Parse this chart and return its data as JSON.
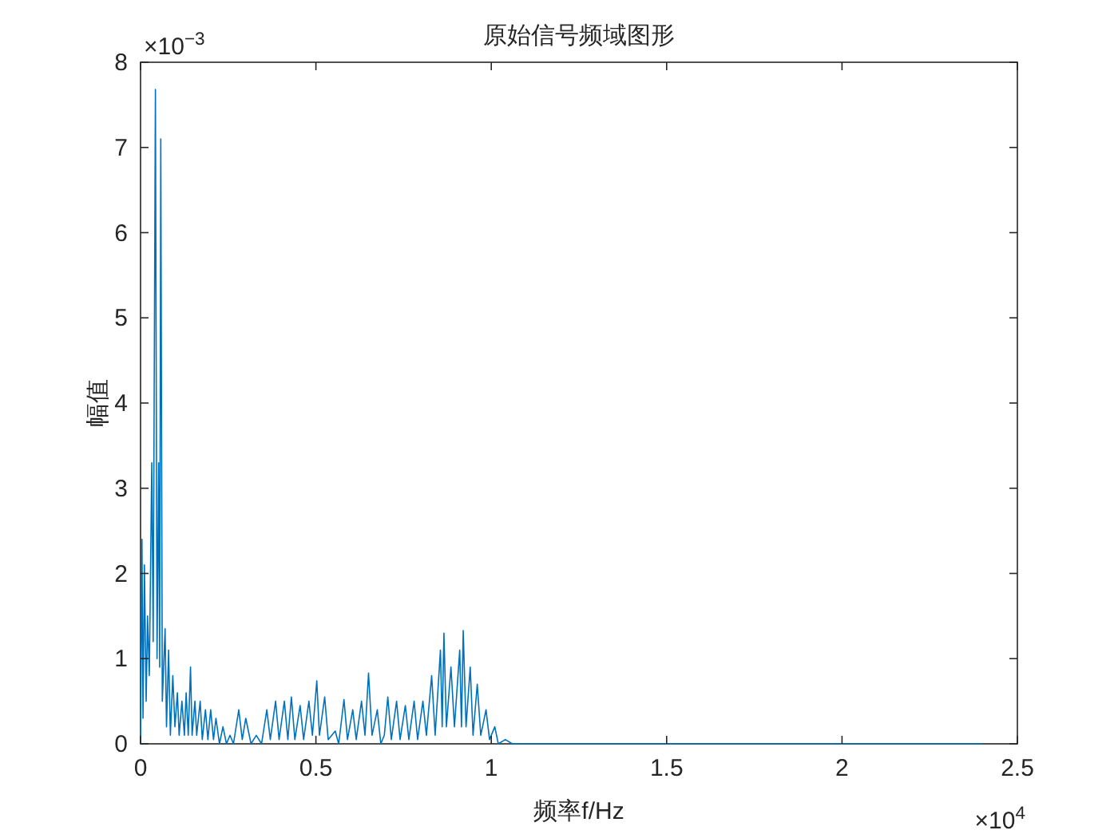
{
  "chart_data": {
    "type": "line",
    "title": "原始信号频域图形",
    "xlabel": "频率f/Hz",
    "ylabel": "幅值",
    "xlim": [
      0,
      2.5
    ],
    "ylim": [
      0,
      8
    ],
    "xticks": [
      0,
      0.5,
      1,
      1.5,
      2,
      2.5
    ],
    "yticks": [
      0,
      1,
      2,
      3,
      4,
      5,
      6,
      7,
      8
    ],
    "annotations": [
      "×10$^{−3}$",
      "×10$^{4}$"
    ],
    "series": [
      {
        "color": "#0072bd",
        "x": [
          0,
          0.004,
          0.007,
          0.011,
          0.016,
          0.02,
          0.025,
          0.032,
          0.036,
          0.0424,
          0.047,
          0.0515,
          0.0545,
          0.0577,
          0.062,
          0.07,
          0.074,
          0.08,
          0.085,
          0.092,
          0.098,
          0.105,
          0.11,
          0.118,
          0.125,
          0.13,
          0.136,
          0.1425,
          0.147,
          0.155,
          0.16,
          0.17,
          0.176,
          0.185,
          0.192,
          0.2,
          0.208,
          0.215,
          0.225,
          0.235,
          0.245,
          0.255,
          0.265,
          0.28,
          0.29,
          0.3,
          0.315,
          0.33,
          0.345,
          0.36,
          0.37,
          0.385,
          0.395,
          0.41,
          0.42,
          0.43,
          0.44,
          0.455,
          0.465,
          0.48,
          0.49,
          0.5025,
          0.51,
          0.525,
          0.535,
          0.555,
          0.565,
          0.58,
          0.59,
          0.605,
          0.615,
          0.63,
          0.64,
          0.65,
          0.66,
          0.675,
          0.685,
          0.695,
          0.705,
          0.715,
          0.73,
          0.74,
          0.755,
          0.765,
          0.78,
          0.79,
          0.805,
          0.815,
          0.83,
          0.84,
          0.855,
          0.86,
          0.865,
          0.872,
          0.885,
          0.895,
          0.91,
          0.915,
          0.92,
          0.928,
          0.94,
          0.948,
          0.96,
          0.97,
          0.985,
          0.995,
          1.01,
          1.02,
          1.04,
          1.06,
          1.1,
          2.4
        ],
        "values": [
          0,
          2.4,
          0.3,
          2.1,
          0.5,
          1.5,
          0.8,
          3.3,
          1.2,
          7.68,
          1,
          3.3,
          0.9,
          7.1,
          0.5,
          1.35,
          0.2,
          1.1,
          0.1,
          0.8,
          0.2,
          0.6,
          0.1,
          0.5,
          0.1,
          0.6,
          0.1,
          0.9,
          0.1,
          0.5,
          0.1,
          0.5,
          0.05,
          0.4,
          0.05,
          0.4,
          0.05,
          0.3,
          0,
          0.2,
          0,
          0.1,
          0,
          0.4,
          0.05,
          0.3,
          0,
          0.1,
          0,
          0.4,
          0.05,
          0.5,
          0.05,
          0.5,
          0.05,
          0.55,
          0.05,
          0.45,
          0.05,
          0.5,
          0.1,
          0.74,
          0.1,
          0.55,
          0.05,
          0.15,
          0,
          0.52,
          0.05,
          0.4,
          0.05,
          0.5,
          0.1,
          0.83,
          0.1,
          0.4,
          0,
          0.1,
          0.55,
          0.05,
          0.5,
          0.05,
          0.45,
          0.05,
          0.5,
          0.05,
          0.5,
          0.1,
          0.8,
          0.1,
          1.1,
          0.2,
          1.3,
          0.2,
          0.9,
          0.2,
          1.1,
          0.2,
          1.33,
          0.2,
          0.9,
          0.1,
          0.7,
          0.1,
          0.4,
          0.05,
          0.2,
          0,
          0.05,
          0,
          0,
          0
        ]
      }
    ]
  }
}
